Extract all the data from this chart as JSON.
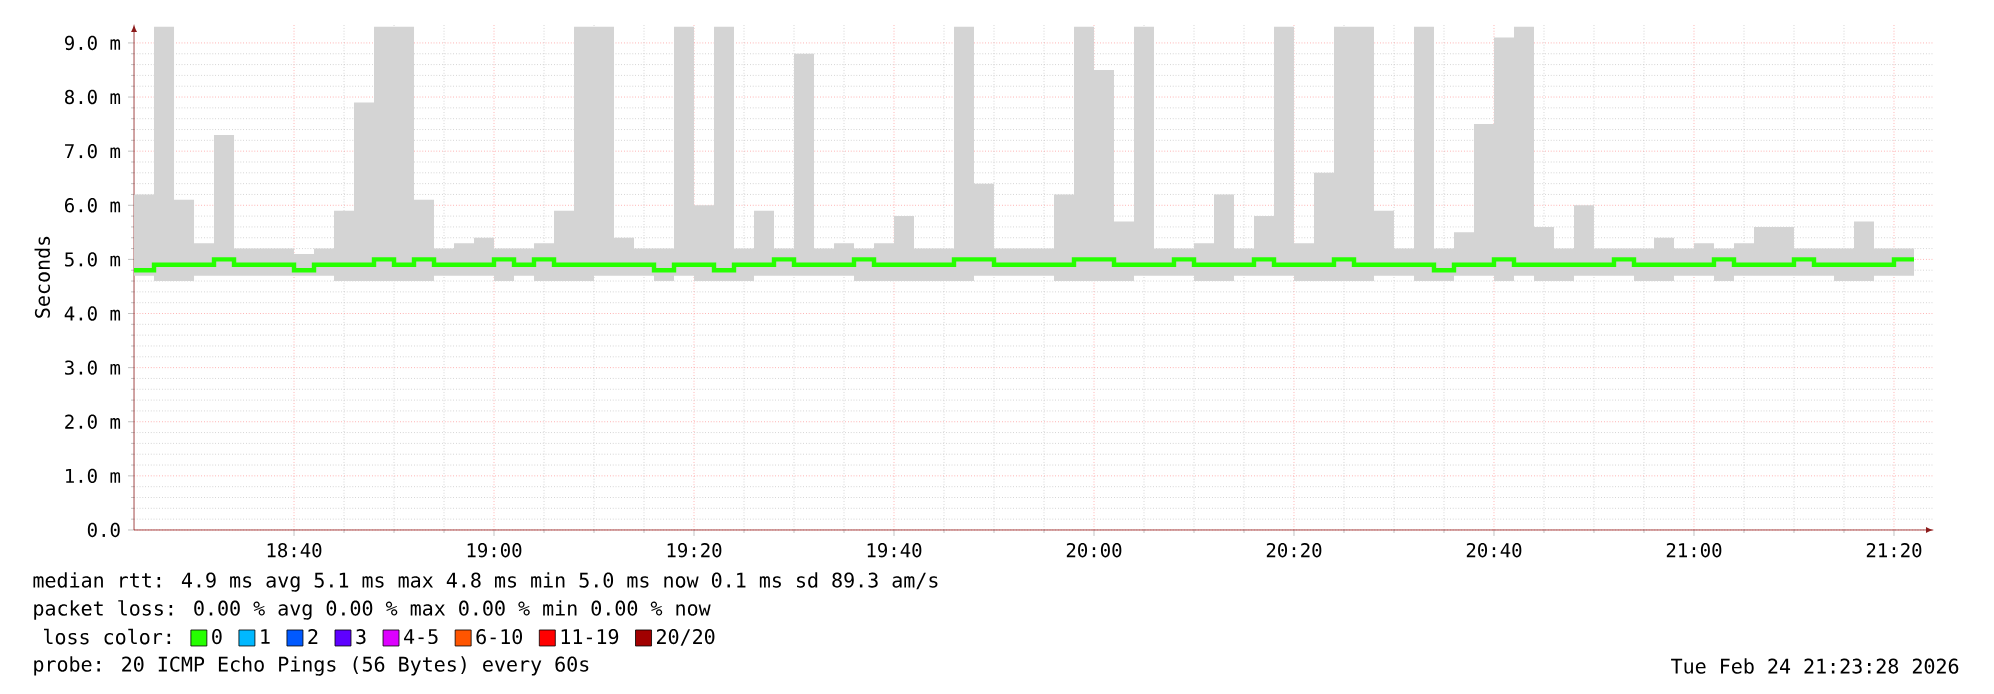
{
  "chart_data": {
    "type": "step",
    "ylabel": "Seconds",
    "legend_title": "loss color:",
    "legend": "bottom",
    "grid": true,
    "xlim": [
      "2026-02-24T18:24",
      "2026-02-24T21:24"
    ],
    "xticks": [
      {
        "value": "2026-02-24T18:40",
        "label": "18:40"
      },
      {
        "value": "2026-02-24T19:00",
        "label": "19:00"
      },
      {
        "value": "2026-02-24T19:20",
        "label": "19:20"
      },
      {
        "value": "2026-02-24T19:40",
        "label": "19:40"
      },
      {
        "value": "2026-02-24T20:00",
        "label": "20:00"
      },
      {
        "value": "2026-02-24T20:20",
        "label": "20:20"
      },
      {
        "value": "2026-02-24T20:40",
        "label": "20:40"
      },
      {
        "value": "2026-02-24T21:00",
        "label": "21:00"
      },
      {
        "value": "2026-02-24T21:20",
        "label": "21:20"
      }
    ],
    "ylim": [
      0,
      9.35
    ],
    "yticks": [
      {
        "value": 0,
        "label": "0.0"
      },
      {
        "value": 1,
        "label": "1.0 m"
      },
      {
        "value": 2,
        "label": "2.0 m"
      },
      {
        "value": 3,
        "label": "3.0 m"
      },
      {
        "value": 4,
        "label": "4.0 m"
      },
      {
        "value": 5,
        "label": "5.0 m"
      },
      {
        "value": 6,
        "label": "6.0 m"
      },
      {
        "value": 7,
        "label": "7.0 m"
      },
      {
        "value": 8,
        "label": "8.0 m"
      },
      {
        "value": 9,
        "label": "9.0 m"
      }
    ],
    "x": [
      "2026-02-24T18:24",
      "2026-02-24T18:26",
      "2026-02-24T18:28",
      "2026-02-24T18:30",
      "2026-02-24T18:32",
      "2026-02-24T18:34",
      "2026-02-24T18:36",
      "2026-02-24T18:38",
      "2026-02-24T18:40",
      "2026-02-24T18:42",
      "2026-02-24T18:44",
      "2026-02-24T18:46",
      "2026-02-24T18:48",
      "2026-02-24T18:50",
      "2026-02-24T18:52",
      "2026-02-24T18:54",
      "2026-02-24T18:56",
      "2026-02-24T18:58",
      "2026-02-24T19:00",
      "2026-02-24T19:02",
      "2026-02-24T19:04",
      "2026-02-24T19:06",
      "2026-02-24T19:08",
      "2026-02-24T19:10",
      "2026-02-24T19:12",
      "2026-02-24T19:14",
      "2026-02-24T19:16",
      "2026-02-24T19:18",
      "2026-02-24T19:20",
      "2026-02-24T19:22",
      "2026-02-24T19:24",
      "2026-02-24T19:26",
      "2026-02-24T19:28",
      "2026-02-24T19:30",
      "2026-02-24T19:32",
      "2026-02-24T19:34",
      "2026-02-24T19:36",
      "2026-02-24T19:38",
      "2026-02-24T19:40",
      "2026-02-24T19:42",
      "2026-02-24T19:44",
      "2026-02-24T19:46",
      "2026-02-24T19:48",
      "2026-02-24T19:50",
      "2026-02-24T19:52",
      "2026-02-24T19:54",
      "2026-02-24T19:56",
      "2026-02-24T19:58",
      "2026-02-24T20:00",
      "2026-02-24T20:02",
      "2026-02-24T20:04",
      "2026-02-24T20:06",
      "2026-02-24T20:08",
      "2026-02-24T20:10",
      "2026-02-24T20:12",
      "2026-02-24T20:14",
      "2026-02-24T20:16",
      "2026-02-24T20:18",
      "2026-02-24T20:20",
      "2026-02-24T20:22",
      "2026-02-24T20:24",
      "2026-02-24T20:26",
      "2026-02-24T20:28",
      "2026-02-24T20:30",
      "2026-02-24T20:32",
      "2026-02-24T20:34",
      "2026-02-24T20:36",
      "2026-02-24T20:38",
      "2026-02-24T20:40",
      "2026-02-24T20:42",
      "2026-02-24T20:44",
      "2026-02-24T20:46",
      "2026-02-24T20:48",
      "2026-02-24T20:50",
      "2026-02-24T20:52",
      "2026-02-24T20:54",
      "2026-02-24T20:56",
      "2026-02-24T20:58",
      "2026-02-24T21:00",
      "2026-02-24T21:02",
      "2026-02-24T21:04",
      "2026-02-24T21:06",
      "2026-02-24T21:08",
      "2026-02-24T21:10",
      "2026-02-24T21:12",
      "2026-02-24T21:14",
      "2026-02-24T21:16",
      "2026-02-24T21:18",
      "2026-02-24T21:20",
      "2026-02-24T21:22"
    ],
    "series": [
      {
        "name": "0",
        "color": "#26ff00",
        "values": [
          4.8,
          4.9,
          4.9,
          4.9,
          5.0,
          4.9,
          4.9,
          4.9,
          4.8,
          4.9,
          4.9,
          4.9,
          5.0,
          4.9,
          5.0,
          4.9,
          4.9,
          4.9,
          5.0,
          4.9,
          5.0,
          4.9,
          4.9,
          4.9,
          4.9,
          4.9,
          4.8,
          4.9,
          4.9,
          4.8,
          4.9,
          4.9,
          5.0,
          4.9,
          4.9,
          4.9,
          5.0,
          4.9,
          4.9,
          4.9,
          4.9,
          5.0,
          5.0,
          4.9,
          4.9,
          4.9,
          4.9,
          5.0,
          5.0,
          4.9,
          4.9,
          4.9,
          5.0,
          4.9,
          4.9,
          4.9,
          5.0,
          4.9,
          4.9,
          4.9,
          5.0,
          4.9,
          4.9,
          4.9,
          4.9,
          4.8,
          4.9,
          4.9,
          5.0,
          4.9,
          4.9,
          4.9,
          4.9,
          4.9,
          5.0,
          4.9,
          4.9,
          4.9,
          4.9,
          5.0,
          4.9,
          4.9,
          4.9,
          5.0,
          4.9,
          4.9,
          4.9,
          4.9,
          5.0,
          5.0
        ],
        "lower": [
          4.7,
          4.6,
          4.6,
          4.7,
          4.7,
          4.7,
          4.7,
          4.7,
          4.7,
          4.7,
          4.6,
          4.6,
          4.6,
          4.6,
          4.6,
          4.7,
          4.7,
          4.7,
          4.6,
          4.7,
          4.6,
          4.6,
          4.6,
          4.7,
          4.7,
          4.7,
          4.6,
          4.7,
          4.6,
          4.6,
          4.6,
          4.7,
          4.7,
          4.7,
          4.7,
          4.7,
          4.6,
          4.6,
          4.6,
          4.6,
          4.6,
          4.6,
          4.7,
          4.7,
          4.7,
          4.7,
          4.6,
          4.6,
          4.6,
          4.6,
          4.7,
          4.7,
          4.7,
          4.6,
          4.6,
          4.7,
          4.7,
          4.7,
          4.6,
          4.6,
          4.6,
          4.6,
          4.7,
          4.7,
          4.6,
          4.6,
          4.7,
          4.7,
          4.6,
          4.7,
          4.6,
          4.6,
          4.7,
          4.7,
          4.7,
          4.6,
          4.6,
          4.7,
          4.7,
          4.6,
          4.7,
          4.7,
          4.7,
          4.7,
          4.7,
          4.6,
          4.6,
          4.7,
          4.7,
          4.7
        ],
        "upper": [
          6.2,
          9.3,
          6.1,
          5.3,
          7.3,
          5.2,
          5.2,
          5.2,
          5.1,
          5.2,
          5.9,
          7.9,
          9.3,
          9.3,
          6.1,
          5.2,
          5.3,
          5.4,
          5.2,
          5.2,
          5.3,
          5.9,
          9.3,
          9.3,
          5.4,
          5.2,
          5.2,
          9.3,
          6.0,
          9.3,
          5.2,
          5.9,
          5.2,
          8.8,
          5.2,
          5.3,
          5.2,
          5.3,
          5.8,
          5.2,
          5.2,
          9.3,
          6.4,
          5.2,
          5.2,
          5.2,
          6.2,
          9.3,
          8.5,
          5.7,
          9.3,
          5.2,
          5.2,
          5.3,
          6.2,
          5.2,
          5.8,
          9.3,
          5.3,
          6.6,
          9.3,
          9.3,
          5.9,
          5.2,
          9.3,
          5.2,
          5.5,
          7.5,
          9.1,
          9.3,
          5.6,
          5.2,
          6.0,
          5.2,
          5.2,
          5.2,
          5.4,
          5.2,
          5.3,
          5.2,
          5.3,
          5.6,
          5.6,
          5.2,
          5.2,
          5.2,
          5.7,
          5.2,
          5.2,
          5.2
        ]
      },
      {
        "name": "1",
        "color": "#00b8ff",
        "values": [
          null,
          null,
          null,
          null,
          null,
          null,
          null,
          null,
          null,
          null,
          null,
          null,
          null,
          null,
          null,
          null,
          null,
          null,
          null,
          null,
          null,
          null,
          null,
          null,
          null,
          null,
          null,
          null,
          null,
          null,
          null,
          null,
          null,
          null,
          null,
          null,
          null,
          null,
          null,
          null,
          null,
          null,
          null,
          null,
          null,
          null,
          null,
          null,
          null,
          null,
          null,
          null,
          null,
          null,
          null,
          null,
          null,
          null,
          null,
          null,
          null,
          null,
          null,
          null,
          null,
          null,
          null,
          null,
          null,
          null,
          null,
          null,
          null,
          null,
          null,
          null,
          null,
          null,
          null,
          null,
          null,
          null,
          null,
          null,
          null,
          null,
          null,
          null,
          null,
          null
        ]
      },
      {
        "name": "2",
        "color": "#0059ff",
        "values": [
          null,
          null,
          null,
          null,
          null,
          null,
          null,
          null,
          null,
          null,
          null,
          null,
          null,
          null,
          null,
          null,
          null,
          null,
          null,
          null,
          null,
          null,
          null,
          null,
          null,
          null,
          null,
          null,
          null,
          null,
          null,
          null,
          null,
          null,
          null,
          null,
          null,
          null,
          null,
          null,
          null,
          null,
          null,
          null,
          null,
          null,
          null,
          null,
          null,
          null,
          null,
          null,
          null,
          null,
          null,
          null,
          null,
          null,
          null,
          null,
          null,
          null,
          null,
          null,
          null,
          null,
          null,
          null,
          null,
          null,
          null,
          null,
          null,
          null,
          null,
          null,
          null,
          null,
          null,
          null,
          null,
          null,
          null,
          null,
          null,
          null,
          null,
          null,
          null,
          null
        ]
      },
      {
        "name": "3",
        "color": "#5e00ff",
        "values": [
          null,
          null,
          null,
          null,
          null,
          null,
          null,
          null,
          null,
          null,
          null,
          null,
          null,
          null,
          null,
          null,
          null,
          null,
          null,
          null,
          null,
          null,
          null,
          null,
          null,
          null,
          null,
          null,
          null,
          null,
          null,
          null,
          null,
          null,
          null,
          null,
          null,
          null,
          null,
          null,
          null,
          null,
          null,
          null,
          null,
          null,
          null,
          null,
          null,
          null,
          null,
          null,
          null,
          null,
          null,
          null,
          null,
          null,
          null,
          null,
          null,
          null,
          null,
          null,
          null,
          null,
          null,
          null,
          null,
          null,
          null,
          null,
          null,
          null,
          null,
          null,
          null,
          null,
          null,
          null,
          null,
          null,
          null,
          null,
          null,
          null,
          null,
          null,
          null,
          null
        ]
      },
      {
        "name": "4-5",
        "color": "#dd00ff",
        "values": [
          null,
          null,
          null,
          null,
          null,
          null,
          null,
          null,
          null,
          null,
          null,
          null,
          null,
          null,
          null,
          null,
          null,
          null,
          null,
          null,
          null,
          null,
          null,
          null,
          null,
          null,
          null,
          null,
          null,
          null,
          null,
          null,
          null,
          null,
          null,
          null,
          null,
          null,
          null,
          null,
          null,
          null,
          null,
          null,
          null,
          null,
          null,
          null,
          null,
          null,
          null,
          null,
          null,
          null,
          null,
          null,
          null,
          null,
          null,
          null,
          null,
          null,
          null,
          null,
          null,
          null,
          null,
          null,
          null,
          null,
          null,
          null,
          null,
          null,
          null,
          null,
          null,
          null,
          null,
          null,
          null,
          null,
          null,
          null,
          null,
          null,
          null,
          null,
          null,
          null
        ]
      },
      {
        "name": "6-10",
        "color": "#ff5500",
        "values": [
          null,
          null,
          null,
          null,
          null,
          null,
          null,
          null,
          null,
          null,
          null,
          null,
          null,
          null,
          null,
          null,
          null,
          null,
          null,
          null,
          null,
          null,
          null,
          null,
          null,
          null,
          null,
          null,
          null,
          null,
          null,
          null,
          null,
          null,
          null,
          null,
          null,
          null,
          null,
          null,
          null,
          null,
          null,
          null,
          null,
          null,
          null,
          null,
          null,
          null,
          null,
          null,
          null,
          null,
          null,
          null,
          null,
          null,
          null,
          null,
          null,
          null,
          null,
          null,
          null,
          null,
          null,
          null,
          null,
          null,
          null,
          null,
          null,
          null,
          null,
          null,
          null,
          null,
          null,
          null,
          null,
          null,
          null,
          null,
          null,
          null,
          null,
          null,
          null,
          null
        ]
      },
      {
        "name": "11-19",
        "color": "#ff0000",
        "values": [
          null,
          null,
          null,
          null,
          null,
          null,
          null,
          null,
          null,
          null,
          null,
          null,
          null,
          null,
          null,
          null,
          null,
          null,
          null,
          null,
          null,
          null,
          null,
          null,
          null,
          null,
          null,
          null,
          null,
          null,
          null,
          null,
          null,
          null,
          null,
          null,
          null,
          null,
          null,
          null,
          null,
          null,
          null,
          null,
          null,
          null,
          null,
          null,
          null,
          null,
          null,
          null,
          null,
          null,
          null,
          null,
          null,
          null,
          null,
          null,
          null,
          null,
          null,
          null,
          null,
          null,
          null,
          null,
          null,
          null,
          null,
          null,
          null,
          null,
          null,
          null,
          null,
          null,
          null,
          null,
          null,
          null,
          null,
          null,
          null,
          null,
          null,
          null,
          null,
          null
        ]
      },
      {
        "name": "20/20",
        "color": "#a10000",
        "values": [
          null,
          null,
          null,
          null,
          null,
          null,
          null,
          null,
          null,
          null,
          null,
          null,
          null,
          null,
          null,
          null,
          null,
          null,
          null,
          null,
          null,
          null,
          null,
          null,
          null,
          null,
          null,
          null,
          null,
          null,
          null,
          null,
          null,
          null,
          null,
          null,
          null,
          null,
          null,
          null,
          null,
          null,
          null,
          null,
          null,
          null,
          null,
          null,
          null,
          null,
          null,
          null,
          null,
          null,
          null,
          null,
          null,
          null,
          null,
          null,
          null,
          null,
          null,
          null,
          null,
          null,
          null,
          null,
          null,
          null,
          null,
          null,
          null,
          null,
          null,
          null,
          null,
          null,
          null,
          null,
          null,
          null,
          null,
          null,
          null,
          null,
          null,
          null,
          null,
          null
        ]
      }
    ],
    "annotations": [
      "median rtt:  4.9 ms avg  5.1 ms max  4.8 ms min  5.0 ms now  0.1 ms sd  89.3   am/s",
      "packet loss: 0.00 % avg  0.00 % max  0.00 % min  0.00 % now",
      "probe:       20 ICMP Echo Pings (56 Bytes) every 60s",
      "Tue Feb 24 21:23:28 2026"
    ]
  }
}
